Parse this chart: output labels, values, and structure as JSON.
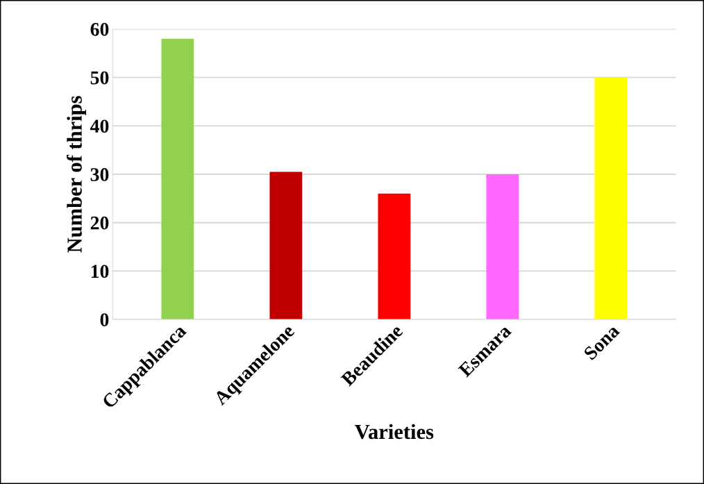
{
  "chart_data": {
    "type": "bar",
    "xlabel": "Varieties",
    "ylabel": "Number of thrips",
    "categories": [
      "Cappablanca",
      "Aquamelone",
      "Beaudine",
      "Esmara",
      "Sona"
    ],
    "values": [
      58,
      30.5,
      26,
      30,
      50
    ],
    "colors": [
      "#92d050",
      "#c00000",
      "#ff0000",
      "#ff66ff",
      "#ffff00"
    ],
    "ylim": [
      0,
      60
    ],
    "yticks": [
      0,
      10,
      20,
      30,
      40,
      50,
      60
    ],
    "grid": "y"
  }
}
